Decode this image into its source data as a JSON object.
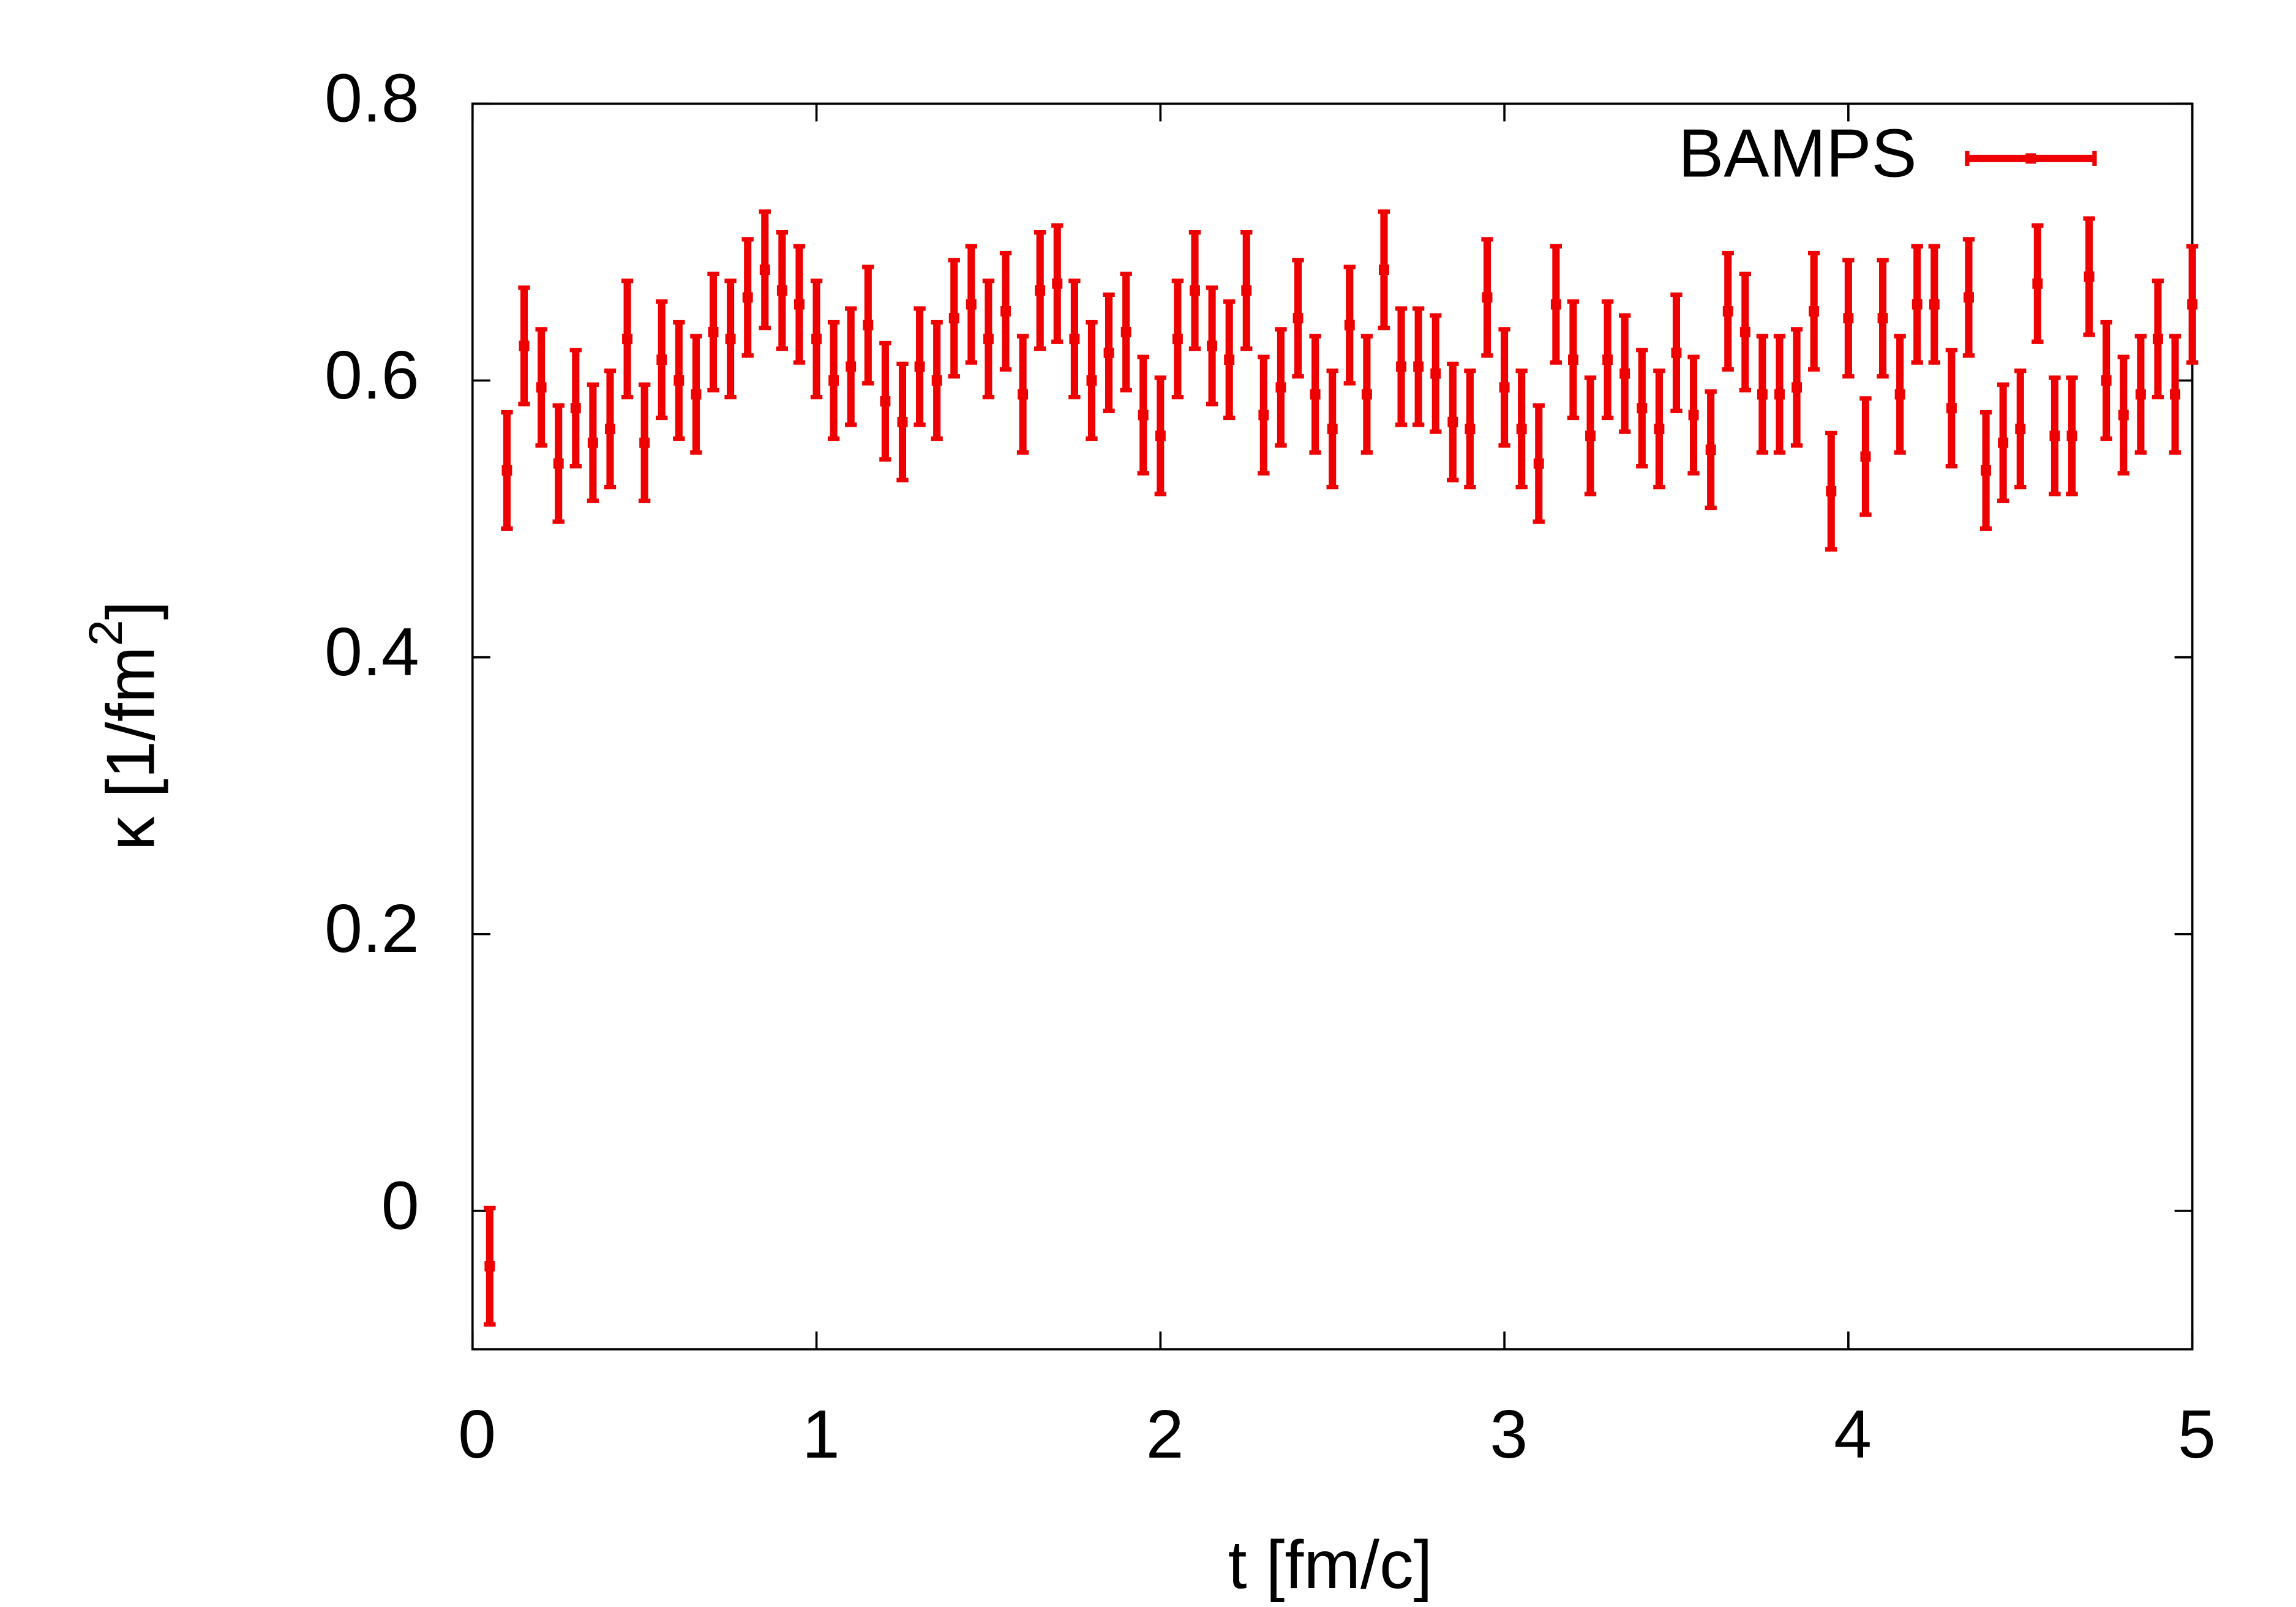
{
  "chart_data": {
    "type": "errorbar",
    "x_label": "t [fm/c]",
    "y_label": "κ [1/fm",
    "y_label_sup": "2",
    "y_label_end": "]",
    "xlim": [
      0,
      5
    ],
    "ylim": [
      -0.1,
      0.8
    ],
    "xticks": [
      0,
      1,
      2,
      3,
      4,
      5
    ],
    "yticks": [
      0,
      0.2,
      0.4,
      0.6,
      0.8
    ],
    "legend": "upper right",
    "series": [
      {
        "name": "BAMPS",
        "color": "#ee0000",
        "error": 0.042,
        "x": [
          0.05,
          0.1,
          0.15,
          0.2,
          0.25,
          0.3,
          0.35,
          0.4,
          0.45,
          0.5,
          0.55,
          0.6,
          0.65,
          0.7,
          0.75,
          0.8,
          0.85,
          0.9,
          0.95,
          1.0,
          1.05,
          1.1,
          1.15,
          1.2,
          1.25,
          1.3,
          1.35,
          1.4,
          1.45,
          1.5,
          1.55,
          1.6,
          1.65,
          1.7,
          1.75,
          1.8,
          1.85,
          1.9,
          1.95,
          2.0,
          2.05,
          2.1,
          2.15,
          2.2,
          2.25,
          2.3,
          2.35,
          2.4,
          2.45,
          2.5,
          2.55,
          2.6,
          2.65,
          2.7,
          2.75,
          2.8,
          2.85,
          2.9,
          2.95,
          3.0,
          3.05,
          3.1,
          3.15,
          3.2,
          3.25,
          3.3,
          3.35,
          3.4,
          3.45,
          3.5,
          3.55,
          3.6,
          3.65,
          3.7,
          3.75,
          3.8,
          3.85,
          3.9,
          3.95,
          4.0,
          4.05,
          4.1,
          4.15,
          4.2,
          4.25,
          4.3,
          4.35,
          4.4,
          4.45,
          4.5,
          4.55,
          4.6,
          4.65,
          4.7,
          4.75,
          4.8,
          4.85,
          4.9,
          4.95,
          5.0
        ],
        "values": [
          -0.04,
          0.535,
          0.625,
          0.595,
          0.54,
          0.58,
          0.555,
          0.565,
          0.63,
          0.555,
          0.615,
          0.6,
          0.59,
          0.635,
          0.63,
          0.66,
          0.68,
          0.665,
          0.655,
          0.63,
          0.6,
          0.61,
          0.64,
          0.585,
          0.57,
          0.61,
          0.6,
          0.645,
          0.655,
          0.63,
          0.65,
          0.59,
          0.665,
          0.67,
          0.63,
          0.6,
          0.62,
          0.635,
          0.575,
          0.56,
          0.63,
          0.665,
          0.625,
          0.615,
          0.665,
          0.575,
          0.595,
          0.645,
          0.59,
          0.565,
          0.64,
          0.59,
          0.68,
          0.61,
          0.61,
          0.605,
          0.57,
          0.565,
          0.66,
          0.595,
          0.565,
          0.54,
          0.655,
          0.615,
          0.56,
          0.615,
          0.605,
          0.58,
          0.565,
          0.62,
          0.575,
          0.55,
          0.65,
          0.635,
          0.59,
          0.59,
          0.595,
          0.65,
          0.52,
          0.645,
          0.545,
          0.645,
          0.59,
          0.655,
          0.655,
          0.58,
          0.66,
          0.535,
          0.555,
          0.565,
          0.67,
          0.56,
          0.56,
          0.675,
          0.6,
          0.575,
          0.59,
          0.63,
          0.59,
          0.655
        ]
      }
    ]
  }
}
